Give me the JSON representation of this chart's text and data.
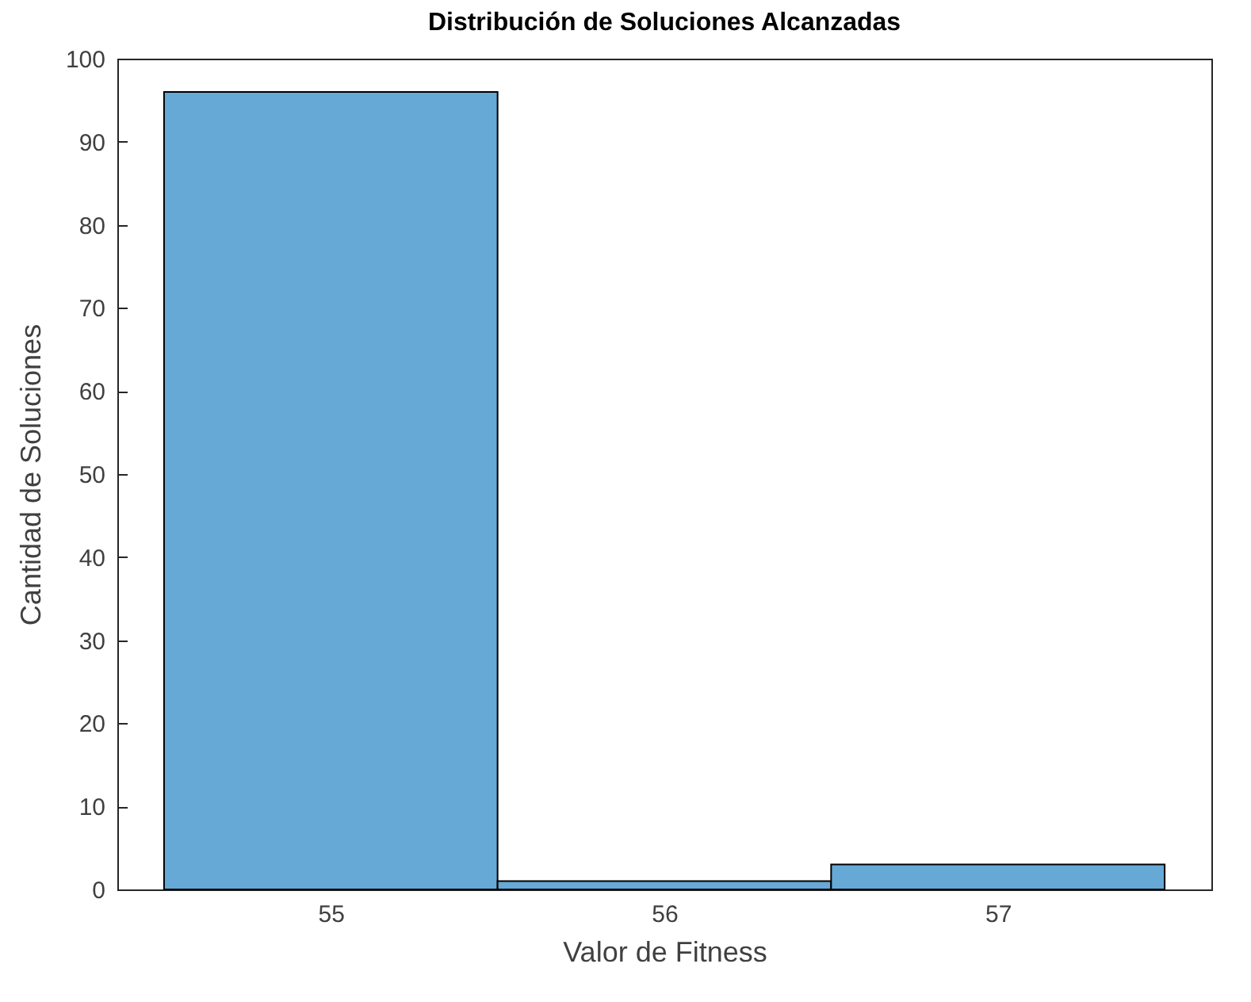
{
  "chart_data": {
    "type": "histogram",
    "title": "Distribución de Soluciones Alcanzadas",
    "xlabel": "Valor de Fitness",
    "ylabel": "Cantidad de Soluciones",
    "bins": [
      54.5,
      55.5,
      56.5,
      57.5
    ],
    "values": [
      96,
      1,
      3
    ],
    "color": "#66a9d6",
    "xlim": [
      54.36,
      57.64
    ],
    "ylim": [
      0,
      100
    ],
    "xticks": [
      55,
      56,
      57
    ],
    "yticks": [
      0,
      10,
      20,
      30,
      40,
      50,
      60,
      70,
      80,
      90,
      100
    ]
  }
}
